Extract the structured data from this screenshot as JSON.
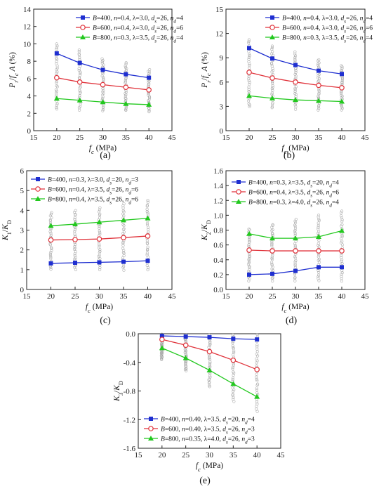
{
  "figure": {
    "panels": [
      {
        "id": "a",
        "label": "(a)",
        "xlabel": "f_c (MPa)",
        "ylabel": "P_r/f_c A (%)",
        "xticks": [
          "15",
          "20",
          "25",
          "30",
          "35",
          "40",
          "45"
        ],
        "yticks": [
          "0",
          "2",
          "4",
          "6",
          "8",
          "10",
          "12",
          "14"
        ]
      },
      {
        "id": "b",
        "label": "(b)",
        "xlabel": "f_c (MPa)",
        "ylabel": "P_r/f_c A (%)",
        "xticks": [
          "15",
          "20",
          "25",
          "30",
          "35",
          "40",
          "45"
        ],
        "yticks": [
          "0",
          "3",
          "6",
          "9",
          "12",
          "15"
        ]
      },
      {
        "id": "c",
        "label": "(c)",
        "xlabel": "f_c (MPa)",
        "ylabel": "K_1/K_D",
        "xticks": [
          "15",
          "20",
          "25",
          "30",
          "35",
          "40",
          "45"
        ],
        "yticks": [
          "0",
          "1",
          "2",
          "3",
          "4",
          "5",
          "6"
        ]
      },
      {
        "id": "d",
        "label": "(d)",
        "xlabel": "f_c (MPa)",
        "ylabel": "K_2/K_D",
        "xticks": [
          "15",
          "20",
          "25",
          "30",
          "35",
          "40",
          "45"
        ],
        "yticks": [
          "0.0",
          "0.2",
          "0.4",
          "0.6",
          "0.8",
          "1.0",
          "1.2",
          "1.4",
          "1.6"
        ]
      },
      {
        "id": "e",
        "label": "(e)",
        "xlabel": "f_c (MPa)",
        "ylabel": "K_3/K_D",
        "xticks": [
          "15",
          "20",
          "25",
          "30",
          "35",
          "40",
          "45"
        ],
        "yticks": [
          "0.0",
          "-0.4",
          "-0.8",
          "-1.2",
          "-1.6"
        ]
      }
    ]
  },
  "colors": {
    "blue": "#1f2fd0",
    "red": "#e0323a",
    "green": "#22c81e",
    "scatter": "#9a9a9a"
  },
  "chart_data": [
    {
      "type": "line",
      "panel": "a",
      "x": [
        20,
        25,
        30,
        35,
        40
      ],
      "xlim": [
        15,
        45
      ],
      "ylim": [
        0,
        14
      ],
      "xlabel": "f_c (MPa)",
      "ylabel": "P_r/f_c A (%)",
      "legend_position": "top-right",
      "series": [
        {
          "name": "B=400, n=0.4, λ=3.0, d_s=26, n_d=4",
          "color": "blue",
          "marker": "square",
          "values": [
            8.9,
            7.8,
            7.0,
            6.5,
            6.1
          ]
        },
        {
          "name": "B=600, n=0.4, λ=3.0, d_s=26, n_d=6",
          "color": "red",
          "marker": "circle-open",
          "values": [
            6.1,
            5.6,
            5.3,
            5.0,
            4.7
          ]
        },
        {
          "name": "B=800, n=0.3, λ=3.5, d_s=26, n_d=4",
          "color": "green",
          "marker": "triangle",
          "values": [
            3.7,
            3.5,
            3.3,
            3.1,
            3.0
          ]
        }
      ],
      "scatter_range": [
        [
          2.5,
          10.0
        ],
        [
          2.4,
          9.3
        ],
        [
          2.3,
          8.3
        ],
        [
          2.3,
          7.8
        ],
        [
          2.2,
          7.0
        ]
      ]
    },
    {
      "type": "line",
      "panel": "b",
      "x": [
        20,
        25,
        30,
        35,
        40
      ],
      "xlim": [
        15,
        45
      ],
      "ylim": [
        0,
        15
      ],
      "xlabel": "f_c (MPa)",
      "ylabel": "P_r/f_c A (%)",
      "legend_position": "top-right",
      "series": [
        {
          "name": "B=400, n=0.4, λ=3.0, d_s=26, n_d=4",
          "color": "blue",
          "marker": "square",
          "values": [
            10.2,
            8.9,
            8.1,
            7.4,
            7.0
          ]
        },
        {
          "name": "B=600, n=0.4, λ=3.0, d_s=26, n_d=6",
          "color": "red",
          "marker": "circle-open",
          "values": [
            7.2,
            6.5,
            6.0,
            5.6,
            5.3
          ]
        },
        {
          "name": "B=800, n=0.3, λ=3.5, d_s=26, n_d=4",
          "color": "green",
          "marker": "triangle",
          "values": [
            4.3,
            4.0,
            3.8,
            3.7,
            3.6
          ]
        }
      ],
      "scatter_range": [
        [
          2.9,
          11.3
        ],
        [
          2.8,
          10.5
        ],
        [
          2.7,
          9.7
        ],
        [
          2.6,
          8.8
        ],
        [
          2.6,
          8.0
        ]
      ]
    },
    {
      "type": "line",
      "panel": "c",
      "x": [
        20,
        25,
        30,
        35,
        40
      ],
      "xlim": [
        15,
        45
      ],
      "ylim": [
        0,
        6
      ],
      "xlabel": "f_c (MPa)",
      "ylabel": "K_1/K_D",
      "legend_position": "top-left",
      "series": [
        {
          "name": "B=400, n=0.3, λ=3.0, d_s=20, n_d=3",
          "color": "blue",
          "marker": "square",
          "values": [
            1.32,
            1.35,
            1.37,
            1.4,
            1.45
          ]
        },
        {
          "name": "B=600, n=0.4, λ=3.5, d_s=26, n_d=6",
          "color": "red",
          "marker": "circle-open",
          "values": [
            2.5,
            2.52,
            2.55,
            2.62,
            2.7
          ]
        },
        {
          "name": "B=800, n=0.4, λ=3.5, d_s=26, n_d=6",
          "color": "green",
          "marker": "triangle",
          "values": [
            3.22,
            3.3,
            3.4,
            3.5,
            3.6
          ]
        }
      ],
      "scatter_range": [
        [
          1.0,
          3.9
        ],
        [
          1.0,
          4.0
        ],
        [
          1.0,
          4.1
        ],
        [
          1.0,
          4.3
        ],
        [
          1.0,
          4.5
        ]
      ]
    },
    {
      "type": "line",
      "panel": "d",
      "x": [
        20,
        25,
        30,
        35,
        40
      ],
      "xlim": [
        15,
        45
      ],
      "ylim": [
        0,
        1.6
      ],
      "xlabel": "f_c (MPa)",
      "ylabel": "K_2/K_D",
      "legend_position": "top-left",
      "series": [
        {
          "name": "B=400, n=0.3, λ=3.5, d_s=20, n_d=4",
          "color": "blue",
          "marker": "square",
          "values": [
            0.2,
            0.21,
            0.25,
            0.3,
            0.3
          ]
        },
        {
          "name": "B=600, n=0.4, λ=3.5, d_s=26, n_d=6",
          "color": "red",
          "marker": "circle-open",
          "values": [
            0.53,
            0.52,
            0.52,
            0.52,
            0.52
          ]
        },
        {
          "name": "B=800, n=0.3, λ=4.0, d_s=26, n_d=4",
          "color": "green",
          "marker": "triangle",
          "values": [
            0.75,
            0.69,
            0.69,
            0.71,
            0.79
          ]
        }
      ],
      "scatter_range": [
        [
          0.12,
          0.82
        ],
        [
          0.12,
          0.88
        ],
        [
          0.12,
          0.95
        ],
        [
          0.12,
          1.0
        ],
        [
          0.12,
          1.05
        ]
      ]
    },
    {
      "type": "line",
      "panel": "e",
      "x": [
        20,
        25,
        30,
        35,
        40
      ],
      "xlim": [
        15,
        45
      ],
      "ylim": [
        -1.6,
        0.0
      ],
      "xlabel": "f_c (MPa)",
      "ylabel": "K_3/K_D",
      "legend_position": "bottom-left",
      "series": [
        {
          "name": "B=400, n=0.40, λ=3.5, d_s=20, n_d=4",
          "color": "blue",
          "marker": "square",
          "values": [
            -0.03,
            -0.04,
            -0.05,
            -0.07,
            -0.08
          ]
        },
        {
          "name": "B=600, n=0.40, λ=3.5, d_s=26, n_d=3",
          "color": "red",
          "marker": "circle-open",
          "values": [
            -0.08,
            -0.16,
            -0.25,
            -0.37,
            -0.5
          ]
        },
        {
          "name": "B=800, n=0.35, λ=4.0, d_s=26, n_d=3",
          "color": "green",
          "marker": "triangle",
          "values": [
            -0.2,
            -0.34,
            -0.51,
            -0.7,
            -0.88
          ]
        }
      ],
      "scatter_range": [
        [
          -0.36,
          -0.01
        ],
        [
          -0.52,
          -0.02
        ],
        [
          -0.74,
          -0.02
        ],
        [
          -0.95,
          -0.02
        ],
        [
          -1.08,
          -0.02
        ]
      ]
    }
  ]
}
